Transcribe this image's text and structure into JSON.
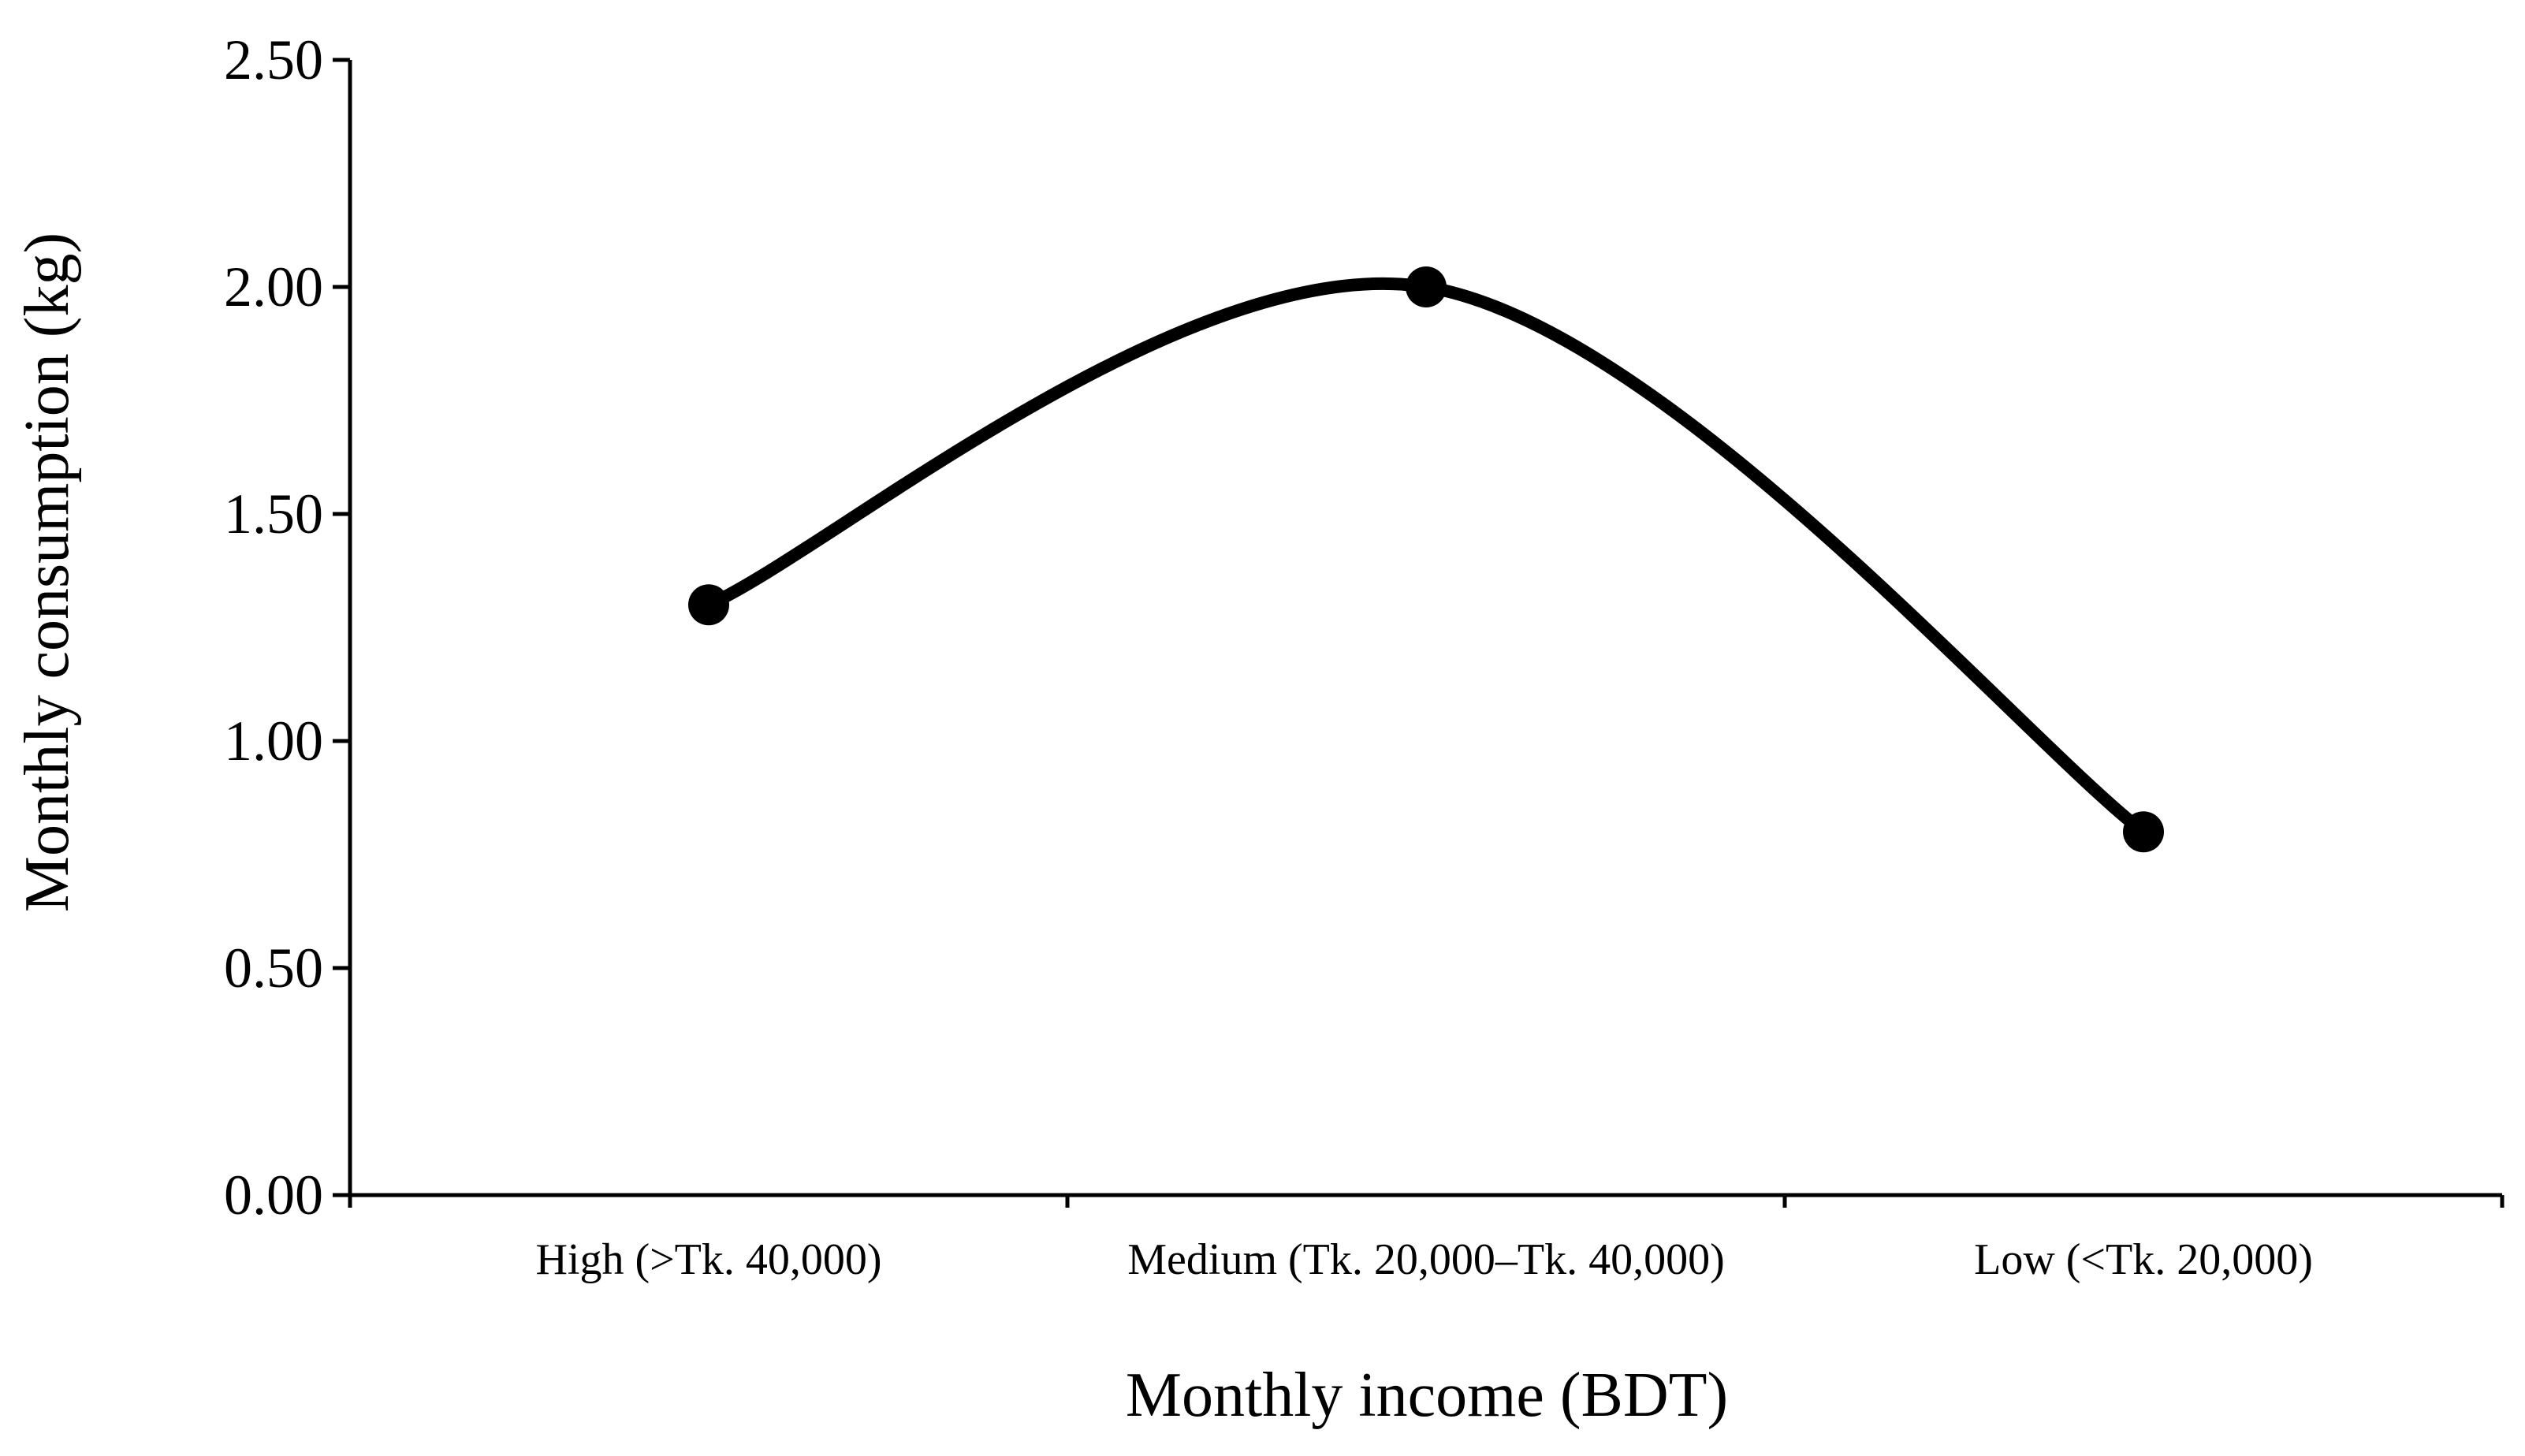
{
  "chart_data": {
    "type": "line",
    "smooth": true,
    "title": "",
    "xlabel": "Monthly income (BDT)",
    "ylabel": "Monthly consumption (kg)",
    "categories": [
      "High (>Tk. 40,000)",
      "Medium (Tk. 20,000–Tk. 40,000)",
      "Low (<Tk. 20,000)"
    ],
    "series": [
      {
        "values": [
          1.3,
          2.0,
          0.8
        ]
      }
    ],
    "ylim": [
      0,
      2.5
    ],
    "yticks": [
      "0.00",
      "0.50",
      "1.00",
      "1.50",
      "2.00",
      "2.50"
    ],
    "grid": false,
    "legend": "none",
    "line_color": "#000000",
    "marker_color": "#000000"
  }
}
